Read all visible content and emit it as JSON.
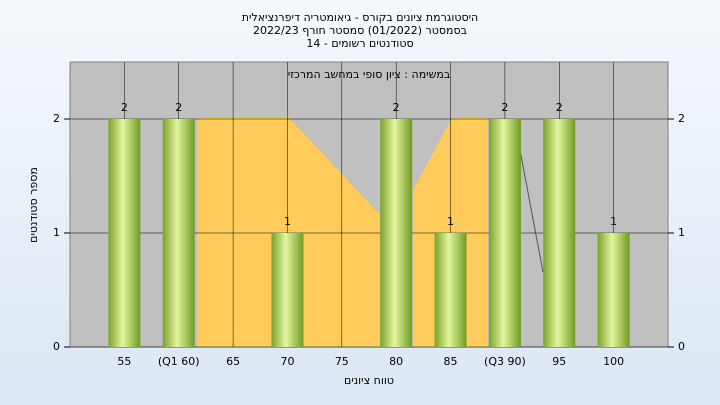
{
  "chart_data": {
    "type": "bar",
    "title": "היסטוגרמת ציונים בקורס - גיאומטריה דיפרנציאלית",
    "subtitle": [
      "בסמסטר  (01/2022)  סמסטר חורף 2022/23",
      "סטודנטים רשומים - 14"
    ],
    "annotation": "במשימה : ציון סופי במחשב המרכזי",
    "x_label": "טווח ציונים",
    "y_label": "מספר סטודנטים",
    "categories": [
      "55",
      "(Q1 60)",
      "65",
      "70",
      "75",
      "80",
      "85",
      "(Q3 90)",
      "95",
      "100"
    ],
    "values": [
      2,
      2,
      0,
      1,
      0,
      2,
      1,
      2,
      2,
      1
    ],
    "ylim": [
      0,
      2.5
    ],
    "yticks": [
      0,
      1,
      2
    ],
    "y2lim": [
      0,
      2.5
    ],
    "y2ticks": [
      0,
      1,
      2
    ],
    "grid": true
  }
}
